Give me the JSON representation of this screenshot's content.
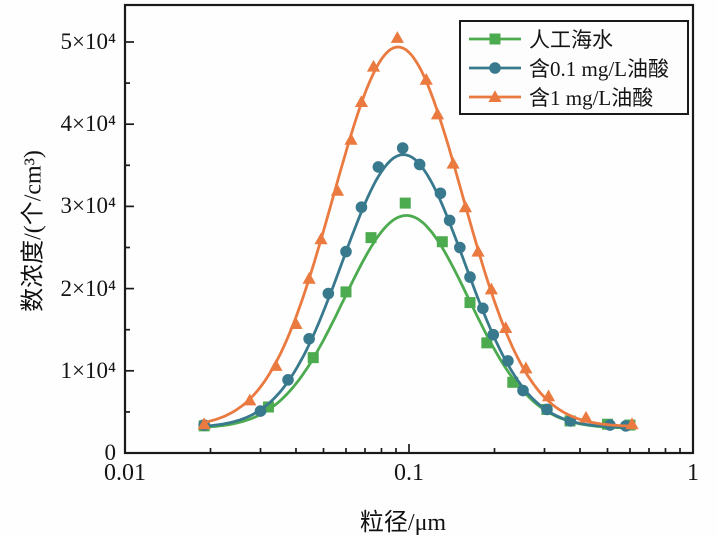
{
  "figure": {
    "background": "#fefefe",
    "frame_color": "#1a1a1a",
    "x_axis_title": "粒径/μm",
    "y_axis_title": "数浓度/(个/cm³)"
  },
  "chart_data": {
    "type": "line",
    "title": "",
    "xlabel": "粒径/μm",
    "ylabel": "数浓度/(个/cm³)",
    "x_scale": "log",
    "xlim": [
      0.01,
      1
    ],
    "ylim": [
      0,
      54500
    ],
    "grid": false,
    "legend_position": "top-right",
    "x_tick_labels": [
      "0.01",
      "0.1",
      "1"
    ],
    "x_tick_values": [
      0.01,
      0.1,
      1
    ],
    "y_tick_labels": [
      "0",
      "1×10⁴",
      "2×10⁴",
      "3×10⁴",
      "4×10⁴",
      "5×10⁴"
    ],
    "y_tick_values": [
      0,
      10000,
      20000,
      30000,
      40000,
      50000
    ],
    "series": [
      {
        "id": "artificial-seawater",
        "name": "人工海水",
        "color": "#4caa4f",
        "marker": "square",
        "points": [
          [
            0.019,
            3300
          ],
          [
            0.032,
            5600
          ],
          [
            0.046,
            11600
          ],
          [
            0.06,
            19600
          ],
          [
            0.0735,
            26200
          ],
          [
            0.097,
            30400
          ],
          [
            0.131,
            25700
          ],
          [
            0.164,
            18300
          ],
          [
            0.188,
            13400
          ],
          [
            0.232,
            8600
          ],
          [
            0.306,
            5300
          ],
          [
            0.369,
            3900
          ],
          [
            0.5,
            3500
          ],
          [
            0.6,
            3400
          ]
        ],
        "curve_fit": {
          "baseline": 3000,
          "amplitude": 25900,
          "center_log10": -1.009,
          "sigma_log10": 0.22
        }
      },
      {
        "id": "oleic-acid-0.1mg",
        "name": "含0.1 mg/L油酸",
        "color": "#38798e",
        "marker": "circle",
        "points": [
          [
            0.019,
            3400
          ],
          [
            0.03,
            5100
          ],
          [
            0.0375,
            8900
          ],
          [
            0.0445,
            13900
          ],
          [
            0.052,
            19400
          ],
          [
            0.06,
            24500
          ],
          [
            0.068,
            29900
          ],
          [
            0.078,
            34800
          ],
          [
            0.095,
            37100
          ],
          [
            0.109,
            35100
          ],
          [
            0.129,
            31600
          ],
          [
            0.139,
            28300
          ],
          [
            0.151,
            25000
          ],
          [
            0.164,
            21400
          ],
          [
            0.182,
            17600
          ],
          [
            0.198,
            14400
          ],
          [
            0.223,
            11200
          ],
          [
            0.252,
            7600
          ],
          [
            0.306,
            5300
          ],
          [
            0.37,
            3900
          ],
          [
            0.51,
            3400
          ],
          [
            0.58,
            3300
          ]
        ],
        "curve_fit": {
          "baseline": 3100,
          "amplitude": 33200,
          "center_log10": -1.02,
          "sigma_log10": 0.215
        }
      },
      {
        "id": "oleic-acid-1mg",
        "name": "含1 mg/L油酸",
        "color": "#ea7a40",
        "marker": "triangle",
        "points": [
          [
            0.019,
            3500
          ],
          [
            0.0275,
            6400
          ],
          [
            0.034,
            10600
          ],
          [
            0.04,
            15700
          ],
          [
            0.0445,
            21200
          ],
          [
            0.049,
            26000
          ],
          [
            0.056,
            31900
          ],
          [
            0.0625,
            38100
          ],
          [
            0.068,
            42700
          ],
          [
            0.075,
            47000
          ],
          [
            0.091,
            50500
          ],
          [
            0.115,
            45400
          ],
          [
            0.126,
            41200
          ],
          [
            0.143,
            35200
          ],
          [
            0.158,
            29900
          ],
          [
            0.175,
            24500
          ],
          [
            0.195,
            19900
          ],
          [
            0.219,
            15200
          ],
          [
            0.258,
            10300
          ],
          [
            0.31,
            6900
          ],
          [
            0.42,
            4300
          ],
          [
            0.61,
            3500
          ]
        ],
        "curve_fit": {
          "baseline": 3200,
          "amplitude": 46200,
          "center_log10": -1.0386,
          "sigma_log10": 0.228
        }
      }
    ]
  }
}
